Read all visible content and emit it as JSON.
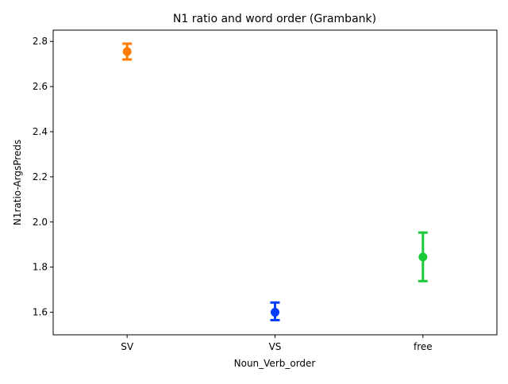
{
  "chart_data": {
    "type": "pointplot",
    "title": "N1 ratio and word order (Grambank)",
    "xlabel": "Noun_Verb_order",
    "ylabel": "N1ratio-ArgsPreds",
    "categories": [
      "SV",
      "VS",
      "free"
    ],
    "ylim": [
      1.5,
      2.85
    ],
    "yticks": [
      1.6,
      1.8,
      2.0,
      2.2,
      2.4,
      2.6,
      2.8
    ],
    "ytick_labels": [
      "1.6",
      "1.8",
      "2.0",
      "2.2",
      "2.4",
      "2.6",
      "2.8"
    ],
    "points": [
      {
        "category": "SV",
        "value": 2.755,
        "ci_low": 2.72,
        "ci_high": 2.79,
        "color": "#ff7c00"
      },
      {
        "category": "VS",
        "value": 1.6,
        "ci_low": 1.565,
        "ci_high": 1.643,
        "color": "#023eff"
      },
      {
        "category": "free",
        "value": 1.845,
        "ci_low": 1.738,
        "ci_high": 1.953,
        "color": "#1ac938"
      }
    ],
    "grid": false,
    "legend": "none"
  }
}
